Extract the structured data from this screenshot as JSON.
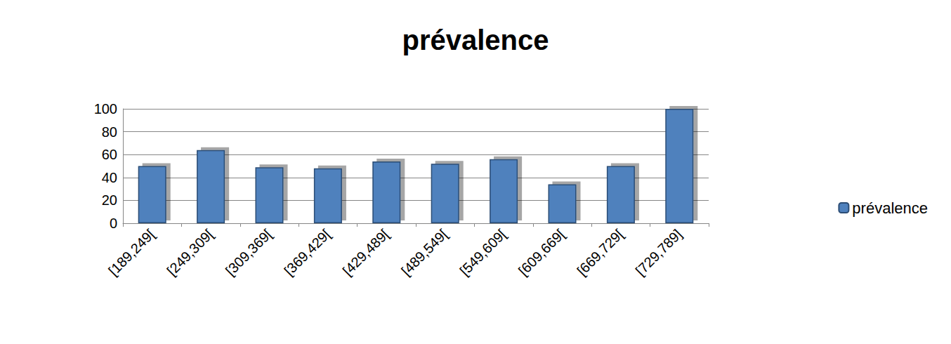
{
  "chart_data": {
    "type": "bar",
    "title": "prévalence",
    "categories": [
      "[189,249[",
      "[249,309[",
      "[309,369[",
      "[369,429[",
      "[429,489[",
      "[489,549[",
      "[549,609[",
      "[609,669[",
      "[669,729[",
      "[729,789]"
    ],
    "series": [
      {
        "name": "prévalence",
        "color": "#4f81bd",
        "values": [
          50,
          64,
          49,
          48,
          54,
          52,
          56,
          34,
          50,
          100
        ]
      }
    ],
    "ylim": [
      0,
      100
    ],
    "yticks": [
      0,
      20,
      40,
      60,
      80,
      100
    ],
    "grid": true,
    "legend": "right"
  }
}
